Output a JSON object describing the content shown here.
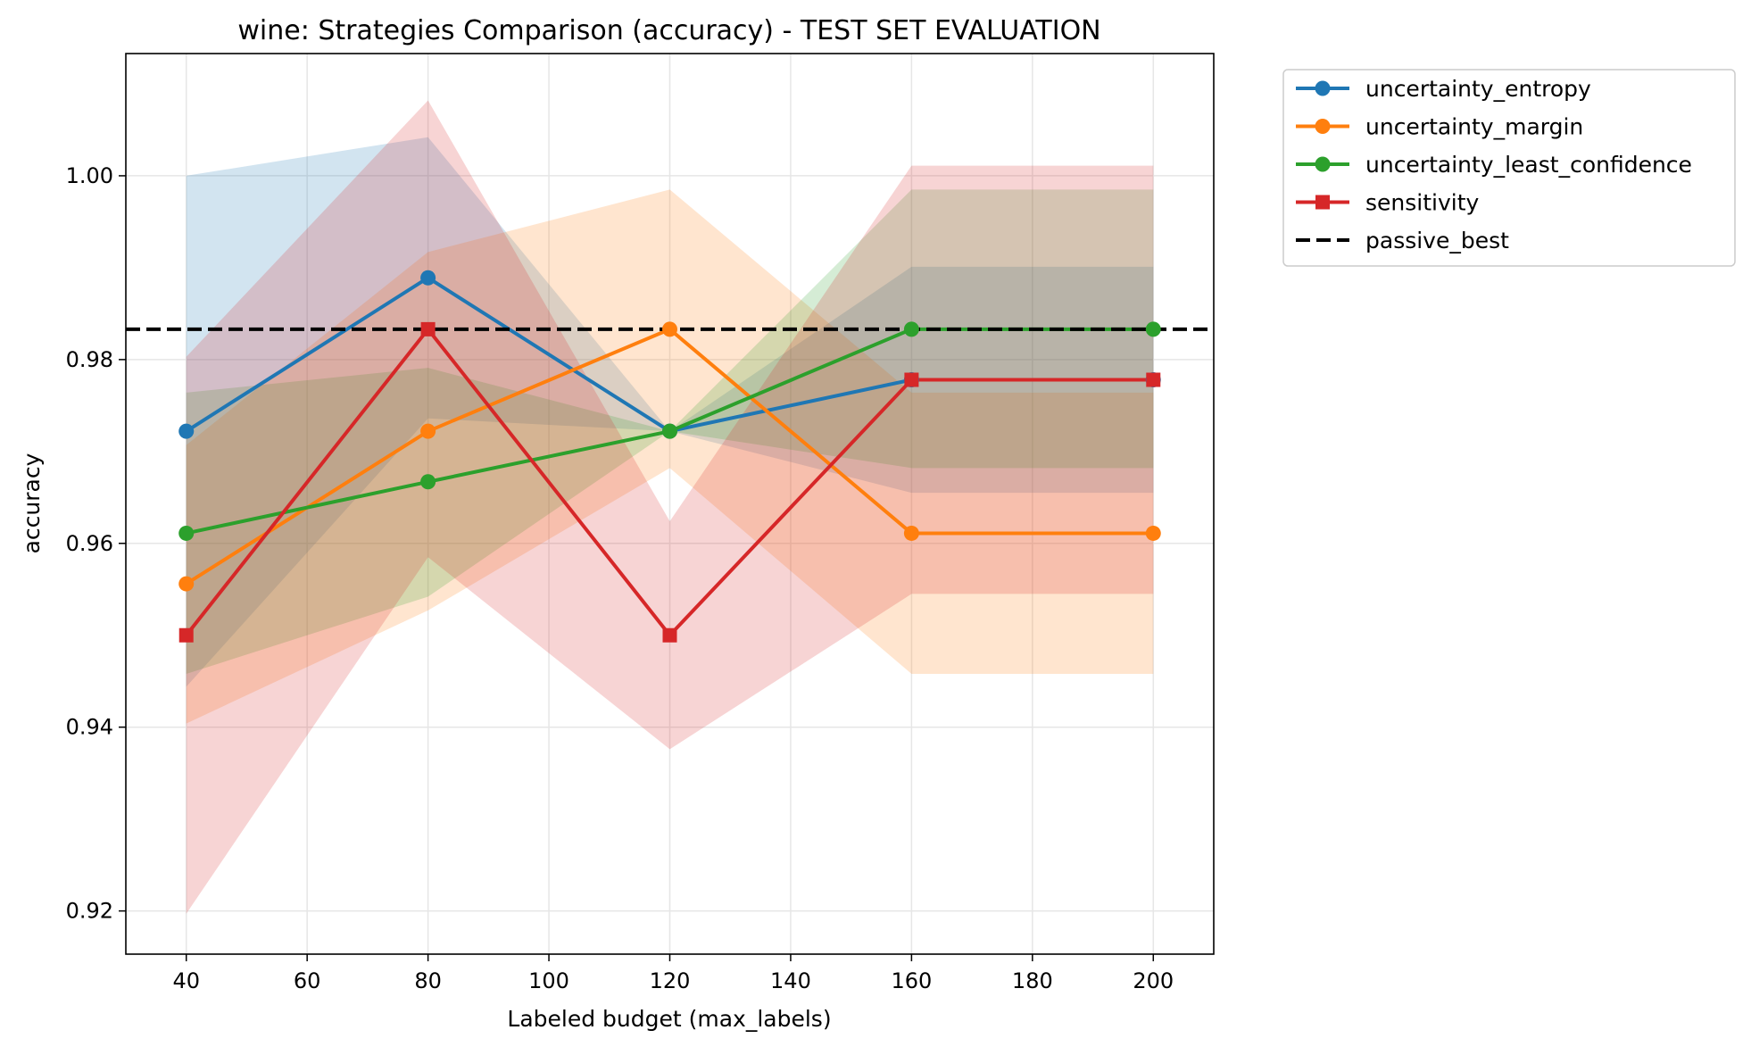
{
  "chart_data": {
    "type": "line",
    "title": "wine: Strategies Comparison (accuracy) - TEST SET EVALUATION",
    "xlabel": "Labeled budget (max_labels)",
    "ylabel": "accuracy",
    "xlim": [
      30,
      210
    ],
    "ylim": [
      0.9153,
      1.0133
    ],
    "xticks": [
      40,
      60,
      80,
      100,
      120,
      140,
      160,
      180,
      200
    ],
    "yticks": [
      0.92,
      0.94,
      0.96,
      0.98,
      1.0
    ],
    "xtick_labels": [
      "40",
      "60",
      "80",
      "100",
      "120",
      "140",
      "160",
      "180",
      "200"
    ],
    "ytick_labels": [
      "0.92",
      "0.94",
      "0.96",
      "0.98",
      "1.00"
    ],
    "grid": true,
    "legend_position": "outside-right",
    "x": [
      40,
      80,
      120,
      160,
      200
    ],
    "series": [
      {
        "name": "uncertainty_entropy",
        "color": "#1f77b4",
        "marker": "circle",
        "values": [
          0.9722,
          0.9889,
          0.9722,
          0.9778,
          0.9778
        ],
        "band_upper": [
          1.0,
          1.0042,
          0.9722,
          0.9901,
          0.9901
        ],
        "band_lower": [
          0.9444,
          0.9736,
          0.9722,
          0.9655,
          0.9655
        ],
        "band_alpha": 0.2
      },
      {
        "name": "uncertainty_margin",
        "color": "#ff7f0e",
        "marker": "circle",
        "values": [
          0.9556,
          0.9722,
          0.9833,
          0.9611,
          0.9611
        ],
        "band_upper": [
          0.9707,
          0.9917,
          0.9985,
          0.9764,
          0.9764
        ],
        "band_lower": [
          0.9404,
          0.9527,
          0.9682,
          0.9458,
          0.9458
        ],
        "band_alpha": 0.2
      },
      {
        "name": "uncertainty_least_confidence",
        "color": "#2ca02c",
        "marker": "circle",
        "values": [
          0.9611,
          0.9667,
          0.9722,
          0.9833,
          0.9833
        ],
        "band_upper": [
          0.9764,
          0.9791,
          0.9722,
          0.9985,
          0.9985
        ],
        "band_lower": [
          0.9458,
          0.9542,
          0.9722,
          0.9682,
          0.9682
        ],
        "band_alpha": 0.2
      },
      {
        "name": "sensitivity",
        "color": "#d62728",
        "marker": "square",
        "values": [
          0.95,
          0.9833,
          0.95,
          0.9778,
          0.9778
        ],
        "band_upper": [
          0.9803,
          1.0082,
          0.9624,
          1.0011,
          1.0011
        ],
        "band_lower": [
          0.9197,
          0.9585,
          0.9376,
          0.9545,
          0.9545
        ],
        "band_alpha": 0.2
      }
    ],
    "reference_lines": [
      {
        "name": "passive_best",
        "color": "#000000",
        "style": "dashed",
        "y": 0.9833
      }
    ]
  }
}
